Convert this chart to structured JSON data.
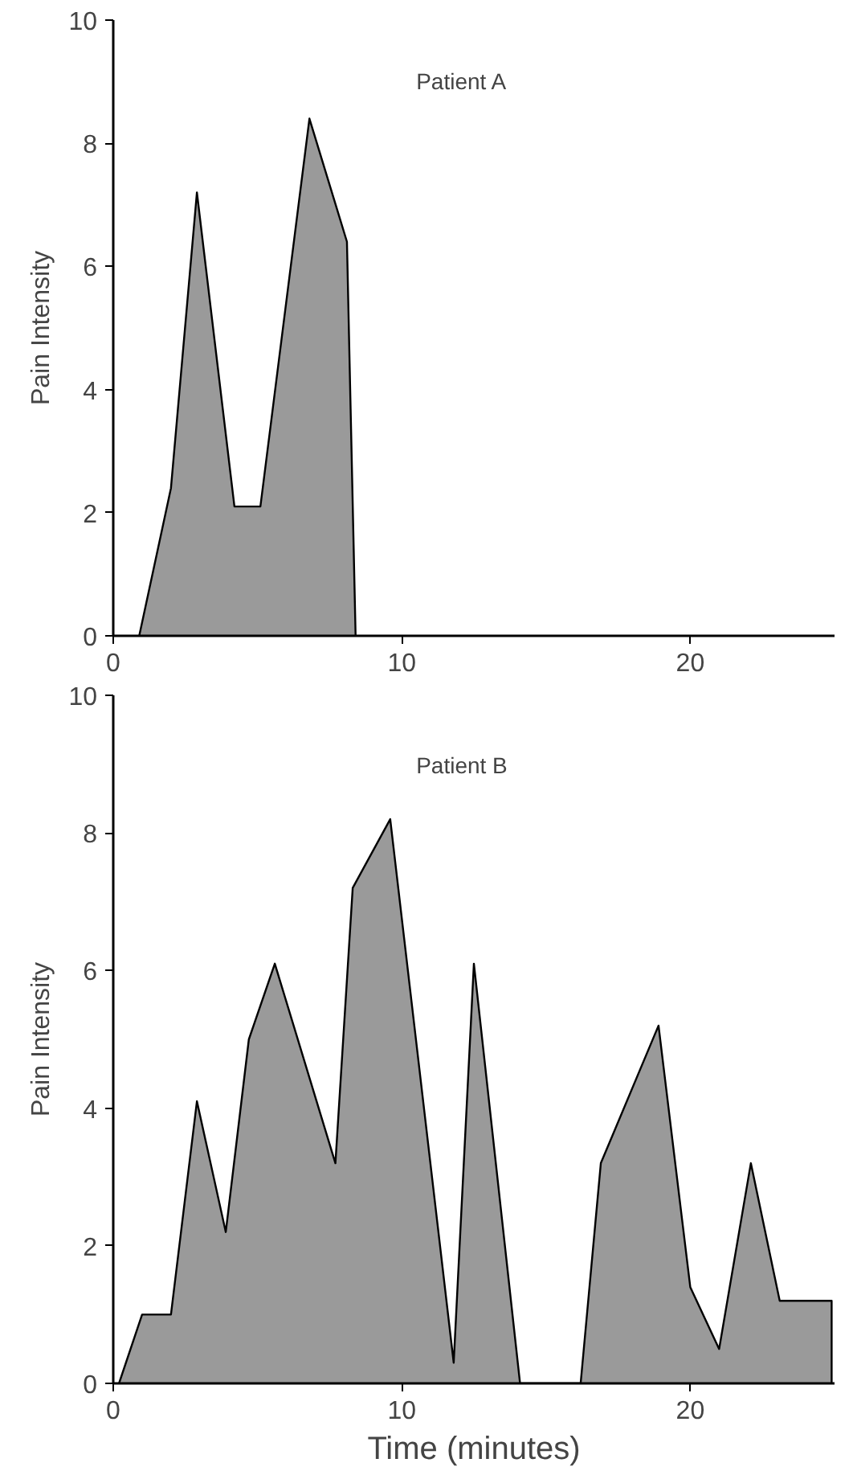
{
  "chart_data": [
    {
      "type": "area",
      "title": "Patient A",
      "ylabel": "Pain Intensity",
      "color": "#9a9a9a",
      "x": [
        0.9,
        2,
        2.9,
        4.2,
        5.1,
        6.8,
        8.1,
        8.4
      ],
      "values": [
        0,
        2.4,
        7.2,
        2.1,
        2.1,
        8.4,
        6.4,
        0
      ],
      "xlim": [
        0,
        25
      ],
      "ylim": [
        0,
        10
      ],
      "xticks": [
        0,
        10,
        20
      ],
      "yticks": [
        0,
        2,
        4,
        6,
        8,
        10
      ],
      "grid": false
    },
    {
      "type": "area",
      "title": "Patient B",
      "ylabel": "Pain Intensity",
      "xlabel": "Time (minutes)",
      "color": "#9a9a9a",
      "x": [
        0.2,
        1,
        2,
        2.9,
        3.9,
        4.7,
        5.6,
        7.7,
        8.3,
        9.6,
        11.8,
        12.5,
        14.1,
        16.2,
        16.9,
        18.9,
        20,
        21,
        22.1,
        23.1,
        24.9,
        24.9
      ],
      "values": [
        0,
        1,
        1,
        4.1,
        2.2,
        5,
        6.1,
        3.2,
        7.2,
        8.2,
        0.3,
        6.1,
        0,
        0,
        3.2,
        5.2,
        1.4,
        0.5,
        3.2,
        1.2,
        1.2,
        0
      ],
      "xlim": [
        0,
        25
      ],
      "ylim": [
        0,
        10
      ],
      "xticks": [
        0,
        10,
        20
      ],
      "yticks": [
        0,
        2,
        4,
        6,
        8,
        10
      ],
      "grid": false
    }
  ]
}
